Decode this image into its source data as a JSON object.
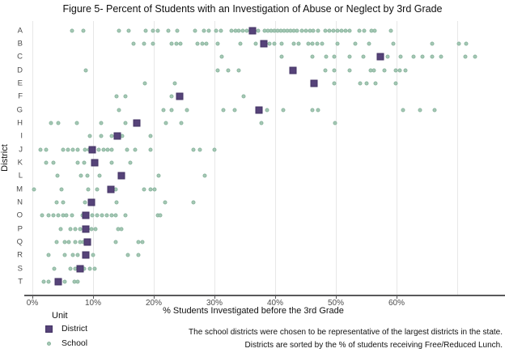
{
  "title": "Figure 5- Percent of Students with an Investigation of Abuse or Neglect by 3rd Grade",
  "footnote": {
    "line1": "The school districts were chosen to be representative of the largest districts in the state.",
    "line2": "Districts are sorted by the % of students receiving Free/Reduced Lunch."
  },
  "legend": {
    "title": "Unit",
    "items": [
      {
        "label": "District",
        "marker": "square"
      },
      {
        "label": "School",
        "marker": "circle"
      }
    ]
  },
  "colors": {
    "school_fill": "#a5c9b5",
    "school_border": "#8cb59f",
    "district_fill": "#564379",
    "district_border": "#433364",
    "gridline": "#e7e7e7",
    "axis_line": "#59595b",
    "tick_text": "#4d4d4d"
  },
  "chart_data": {
    "type": "scatter",
    "title": "Figure 5- Percent of Students with an Investigation of Abuse or Neglect by 3rd Grade",
    "xlabel": "% Students Investigated before the 3rd Grade",
    "ylabel": "District",
    "xlim": [
      0,
      70
    ],
    "grid": "vertical-only",
    "legend_position": "bottom-left",
    "x_ticks": [
      {
        "pct": 0,
        "label": "0%"
      },
      {
        "pct": 10,
        "label": "10%"
      },
      {
        "pct": 20,
        "label": "20%"
      },
      {
        "pct": 30,
        "label": "30%"
      },
      {
        "pct": 40,
        "label": "40%"
      },
      {
        "pct": 50,
        "label": "50%"
      },
      {
        "pct": 60,
        "label": "60%"
      },
      {
        "pct": 70,
        "label": ""
      }
    ],
    "series_legend": [
      "District",
      "School"
    ],
    "districts": [
      {
        "label": "A",
        "district_pct": 36.2,
        "school_pcts": [
          6.5,
          8.4,
          14.3,
          15.8,
          18.6,
          19.9,
          20.7,
          22.4,
          23.9,
          26.8,
          28.3,
          29.1,
          30.2,
          31.0,
          32.8,
          33.4,
          34.0,
          34.7,
          35.3,
          37.2,
          38.2,
          38.8,
          39.3,
          39.8,
          40.4,
          40.9,
          41.4,
          42.0,
          42.5,
          43.0,
          43.6,
          44.4,
          45.1,
          45.7,
          46.3,
          47.0,
          48.2,
          48.9,
          49.6,
          50.2,
          50.9,
          51.6,
          52.2,
          53.8,
          54.6,
          55.8,
          56.4,
          59.1
        ]
      },
      {
        "label": "B",
        "district_pct": 38.1,
        "school_pcts": [
          16.6,
          18.4,
          19.9,
          22.9,
          23.7,
          24.4,
          27.2,
          28.0,
          28.7,
          30.5,
          34.3,
          36.8,
          39.1,
          39.8,
          41.1,
          43.1,
          43.9,
          45.4,
          46.1,
          46.9,
          47.7,
          50.2,
          53.2,
          55.5,
          59.5,
          65.8,
          70.3,
          71.5
        ]
      },
      {
        "label": "C",
        "district_pct": 57.3,
        "school_pcts": [
          31.2,
          41.1,
          46.1,
          48.4,
          49.7,
          52.2,
          54.5,
          58.5,
          60.7,
          62.8,
          64.3,
          65.8,
          67.3,
          71.3,
          72.9
        ]
      },
      {
        "label": "D",
        "district_pct": 42.9,
        "school_pcts": [
          8.8,
          30.5,
          32.3,
          34.0,
          48.2,
          49.7,
          52.2,
          55.7,
          56.2,
          58.0,
          59.8,
          60.5,
          61.5
        ]
      },
      {
        "label": "E",
        "district_pct": 46.4,
        "school_pcts": [
          18.5,
          23.5,
          49.7,
          54.0,
          55.0,
          56.5,
          59.8
        ]
      },
      {
        "label": "F",
        "district_pct": 24.2,
        "school_pcts": [
          13.8,
          15.3,
          22.9,
          34.8
        ]
      },
      {
        "label": "G",
        "district_pct": 37.3,
        "school_pcts": [
          14.3,
          21.6,
          22.9,
          25.4,
          31.5,
          33.3,
          38.6,
          41.3,
          46.1,
          47.1,
          61.0,
          63.8,
          66.3
        ]
      },
      {
        "label": "H",
        "district_pct": 17.2,
        "school_pcts": [
          3.0,
          4.2,
          7.3,
          11.3,
          15.3,
          22.0,
          24.5,
          37.7,
          49.8
        ]
      },
      {
        "label": "I",
        "district_pct": 14.0,
        "school_pcts": [
          9.5,
          11.3,
          13.1,
          14.8,
          19.4
        ]
      },
      {
        "label": "J",
        "district_pct": 9.9,
        "school_pcts": [
          1.3,
          2.3,
          5.1,
          5.9,
          6.6,
          7.4,
          8.6,
          9.3,
          10.9,
          11.7,
          12.4,
          13.1,
          15.6,
          16.9,
          19.4,
          26.5,
          27.6,
          30.0
        ]
      },
      {
        "label": "K",
        "district_pct": 10.2,
        "school_pcts": [
          2.3,
          3.5,
          7.5,
          8.5,
          13.1,
          16.1
        ]
      },
      {
        "label": "L",
        "district_pct": 14.7,
        "school_pcts": [
          4.1,
          8.0,
          9.0,
          11.0,
          20.8,
          28.4
        ]
      },
      {
        "label": "M",
        "district_pct": 12.9,
        "school_pcts": [
          0.3,
          4.8,
          9.2,
          10.7,
          13.7,
          18.4,
          19.4,
          20.1
        ]
      },
      {
        "label": "N",
        "district_pct": 9.7,
        "school_pcts": [
          4.0,
          5.1,
          8.7,
          13.8,
          21.9,
          26.5
        ]
      },
      {
        "label": "O",
        "district_pct": 8.8,
        "school_pcts": [
          1.6,
          2.6,
          3.5,
          4.3,
          5.0,
          5.6,
          6.5,
          8.2,
          9.9,
          10.7,
          11.5,
          12.2,
          13.1,
          13.7,
          15.3,
          20.6,
          21.1
        ]
      },
      {
        "label": "P",
        "district_pct": 8.8,
        "school_pcts": [
          4.6,
          6.3,
          7.0,
          7.8,
          9.7,
          10.4,
          14.1,
          14.7
        ]
      },
      {
        "label": "Q",
        "district_pct": 9.0,
        "school_pcts": [
          4.0,
          5.3,
          6.0,
          7.1,
          7.8,
          8.4,
          13.7,
          17.5,
          18.1
        ]
      },
      {
        "label": "R",
        "district_pct": 8.8,
        "school_pcts": [
          2.7,
          5.3,
          6.6,
          7.4,
          10.0,
          15.7,
          17.5
        ]
      },
      {
        "label": "S",
        "district_pct": 7.8,
        "school_pcts": [
          3.6,
          6.3,
          7.0,
          8.5,
          9.4,
          10.2
        ]
      },
      {
        "label": "T",
        "district_pct": 4.3,
        "school_pcts": [
          1.8,
          2.7,
          5.3,
          6.9,
          7.5
        ]
      }
    ]
  }
}
